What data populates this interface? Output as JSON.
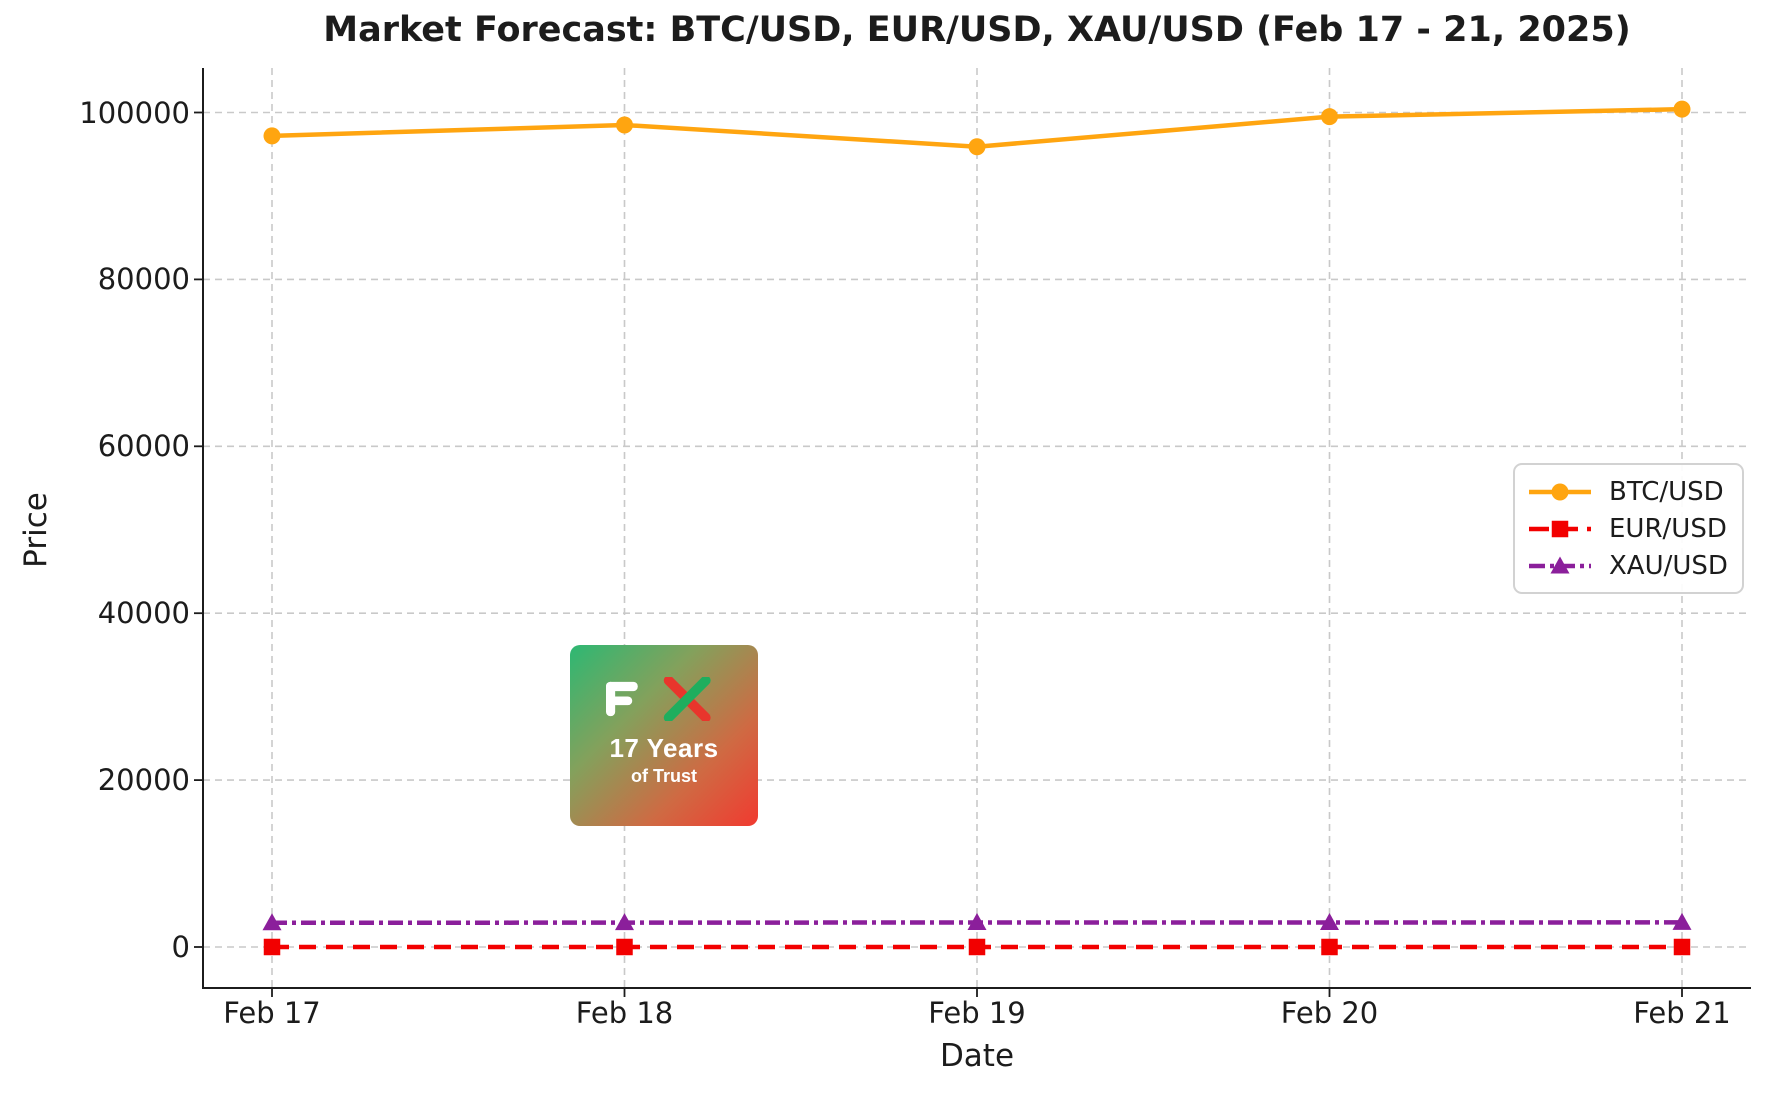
{
  "title": "Market Forecast: BTC/USD, EUR/USD, XAU/USD (Feb 17 - 21, 2025)",
  "watermark": {
    "brand": "FX",
    "years_text": "17 Years",
    "trust_text": "of Trust"
  },
  "chart_data": {
    "type": "line",
    "title": "Market Forecast: BTC/USD, EUR/USD, XAU/USD (Feb 17 - 21, 2025)",
    "xlabel": "Date",
    "ylabel": "Price",
    "categories": [
      "Feb 17",
      "Feb 18",
      "Feb 19",
      "Feb 20",
      "Feb 21"
    ],
    "yticks": [
      0,
      20000,
      40000,
      60000,
      80000,
      100000
    ],
    "ylim": [
      -5000,
      105300
    ],
    "grid": true,
    "legend_position": "center right",
    "colors": {
      "grid": "#c9c9c9",
      "axis": "#1c1c1c",
      "btc": "#ffa510",
      "eur": "#f20000",
      "xau": "#8b1f9b"
    },
    "series": [
      {
        "name": "BTC/USD",
        "color": "#ffa510",
        "style": "solid",
        "marker": "circle",
        "values": [
          97200,
          98500,
          95900,
          99500,
          100400
        ]
      },
      {
        "name": "EUR/USD",
        "color": "#f20000",
        "style": "dashed",
        "marker": "square",
        "values": [
          1.04,
          1.04,
          1.05,
          1.05,
          1.05
        ]
      },
      {
        "name": "XAU/USD",
        "color": "#8b1f9b",
        "style": "dashdot",
        "marker": "triangle",
        "values": [
          2900,
          2920,
          2935,
          2940,
          2945
        ]
      }
    ]
  }
}
